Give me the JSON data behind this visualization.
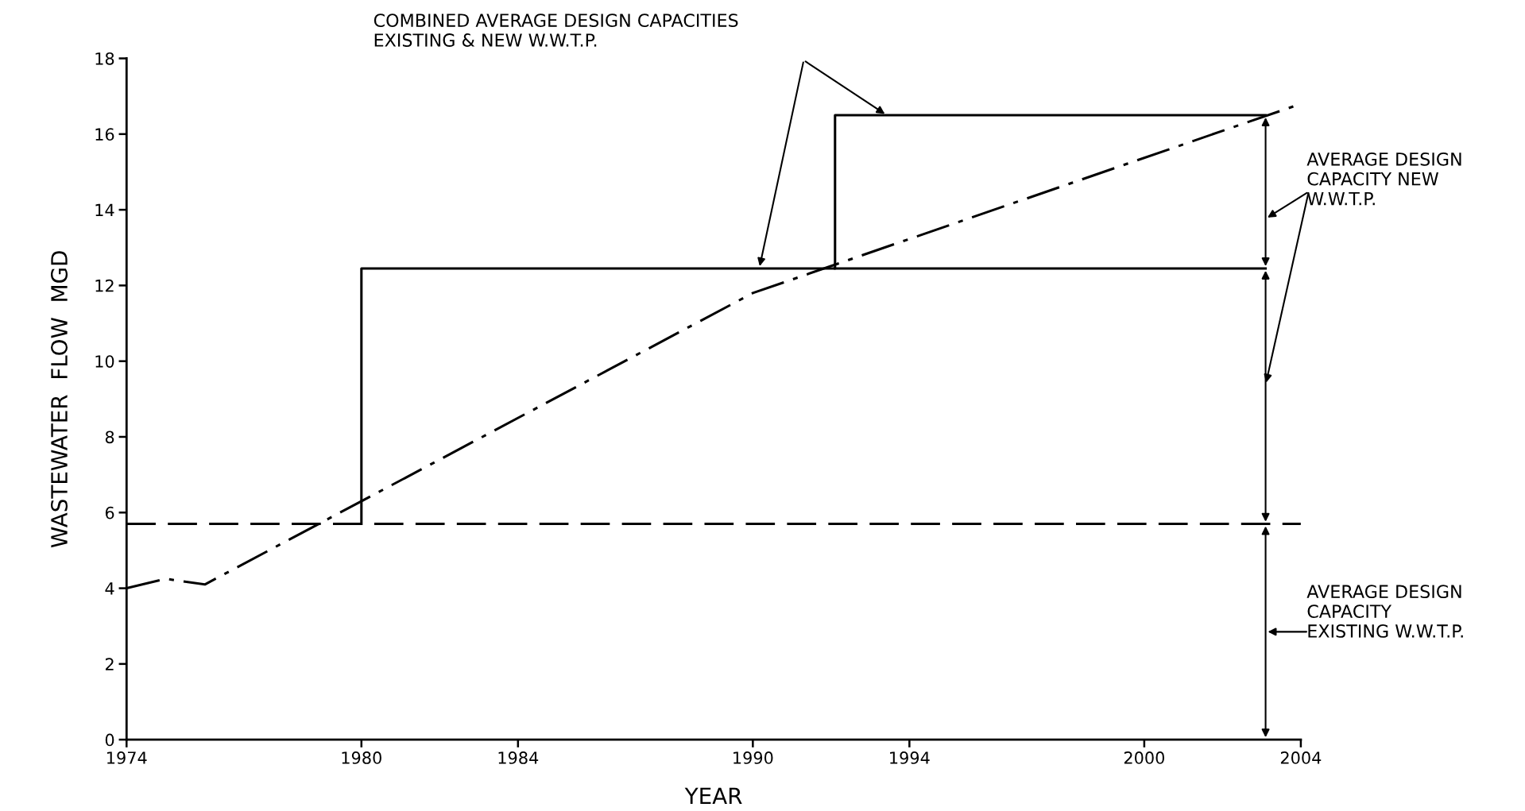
{
  "chart_data": {
    "type": "line",
    "xlabel": "YEAR",
    "ylabel": "WASTEWATER  FLOW  MGD",
    "xlim": [
      1974,
      2004
    ],
    "ylim": [
      0,
      18
    ],
    "xticks": [
      1974,
      1980,
      1984,
      1990,
      1994,
      2000,
      2004
    ],
    "yticks": [
      0,
      2,
      4,
      6,
      8,
      10,
      12,
      14,
      16,
      18
    ],
    "grid": false,
    "legend": false,
    "marker": "none",
    "series": [
      {
        "line_style": "dashdot",
        "color": "#000000",
        "x": [
          1974,
          1975,
          1976,
          1990,
          2004
        ],
        "values": [
          4.0,
          4.25,
          4.1,
          11.8,
          16.8
        ]
      },
      {
        "line_style": "solid",
        "color": "#000000",
        "x": [
          1980,
          1980,
          1992.1,
          1992.1,
          2003.1
        ],
        "values": [
          5.7,
          12.45,
          12.45,
          16.5,
          16.5
        ]
      },
      {
        "line_style": "solid",
        "color": "#000000",
        "x": [
          1992.1,
          2003.1
        ],
        "values": [
          12.45,
          12.45
        ]
      }
    ],
    "ref_lines": [
      {
        "axis": "y",
        "value": 5.7,
        "color": "#000000",
        "line_style": "dashed"
      }
    ],
    "annotations": [
      "COMBINED AVERAGE DESIGN CAPACITIES\nEXISTING & NEW W.W.T.P.",
      "AVERAGE DESIGN\nCAPACITY NEW\nW.W.T.P.",
      "AVERAGE DESIGN\nCAPACITY\nEXISTING W.W.T.P."
    ]
  }
}
